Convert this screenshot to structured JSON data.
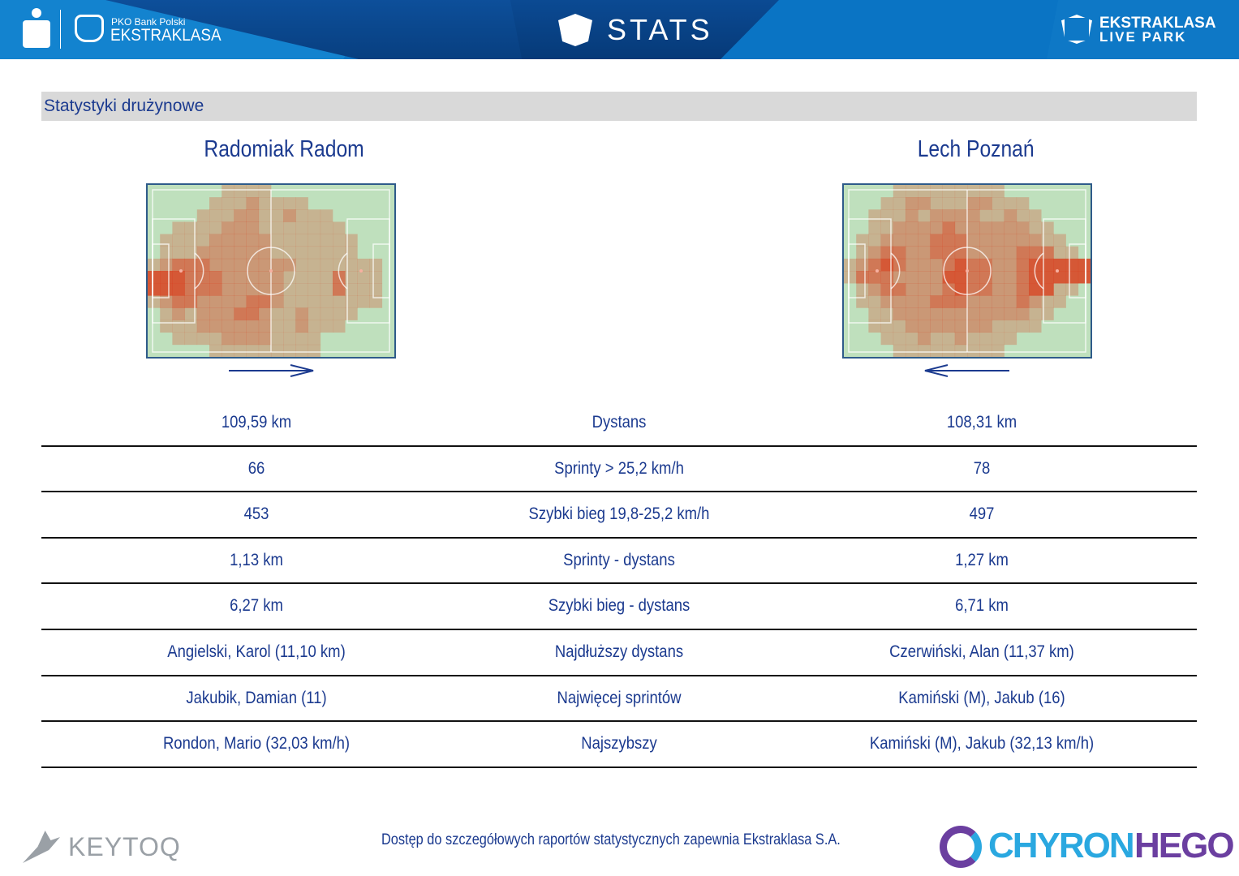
{
  "header": {
    "sponsor": "PKO Bank Polski",
    "league": "EKSTRAKLASA",
    "title": "STATS",
    "brand_line1": "EKSTRAKLASA",
    "brand_line2": "LIVE PARK",
    "pko": "PKO"
  },
  "section_title": "Statystyki drużynowe",
  "teams": {
    "home": {
      "name": "Radomiak Radom",
      "direction": "right",
      "heatmap": [
        "00000011110000000000",
        "00000111211110000000",
        "00001112211211100000",
        "00111122211111110000",
        "01111222221111111000",
        "01112222221111111000",
        "12333222222211111110",
        "44433322222111131110",
        "44433322222111131110",
        "12332222332111111110",
        "01212223321121111000",
        "01112222221121110000",
        "00111122221111000000",
        "00000111111111000000"
      ]
    },
    "away": {
      "name": "Lech Poznań",
      "direction": "left",
      "heatmap": [
        "00001111111110000000",
        "00011221112211100000",
        "00111212222112110000",
        "00112222322222211000",
        "01122223332222221100",
        "01233223332222333110",
        "12343222343322344444",
        "13332222443322344444",
        "01233222343322344110",
        "01122223332222321100",
        "00112222222222211000",
        "00111222222211110000",
        "00011121121111000000",
        "00001111111110000000"
      ]
    }
  },
  "stats": [
    {
      "home": "109,59 km",
      "label": "Dystans",
      "away": "108,31 km"
    },
    {
      "home": "66",
      "label": "Sprinty > 25,2 km/h",
      "away": "78"
    },
    {
      "home": "453",
      "label": "Szybki bieg 19,8-25,2 km/h",
      "away": "497"
    },
    {
      "home": "1,13 km",
      "label": "Sprinty - dystans",
      "away": "1,27 km"
    },
    {
      "home": "6,27 km",
      "label": "Szybki bieg - dystans",
      "away": "6,71 km"
    },
    {
      "home": "Angielski, Karol (11,10 km)",
      "label": "Najdłuższy dystans",
      "away": "Czerwiński, Alan (11,37 km)"
    },
    {
      "home": "Jakubik, Damian (11)",
      "label": "Najwięcej sprintów",
      "away": "Kamiński (M), Jakub (16)"
    },
    {
      "home": "Rondon, Mario (32,03 km/h)",
      "label": "Najszybszy",
      "away": "Kamiński (M), Jakub (32,13 km/h)"
    }
  ],
  "footer": {
    "text": "Dostęp do szczegółowych raportów statystycznych zapewnia Ekstraklasa S.A.",
    "keytoq": "KEYTOQ",
    "chyron": "CHYRON",
    "hego": "HEGO"
  },
  "colors": {
    "accent": "#1b3a8f",
    "header": "#0a74c4",
    "heat": "#d8401f"
  }
}
